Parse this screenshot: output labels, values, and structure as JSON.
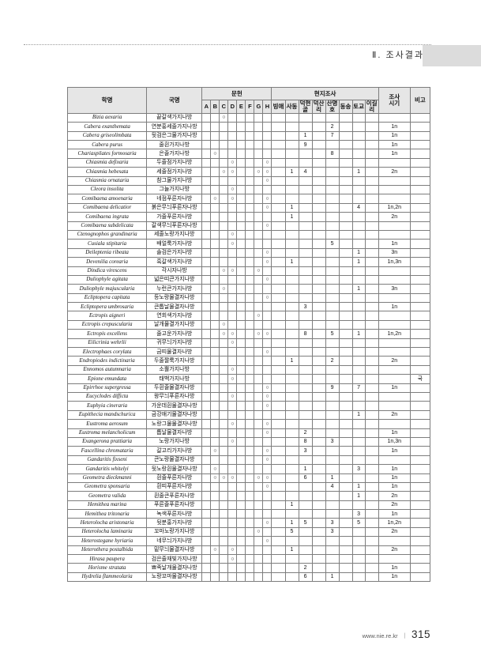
{
  "page": {
    "header_title": "Ⅱ. 조사결과",
    "footer": {
      "url": "www.nie.re.kr",
      "separator": "ㅣ",
      "page_number": "315"
    }
  },
  "table": {
    "headers": {
      "scientific_name": "학명",
      "korean_name": "국명",
      "literature": "문헌",
      "literature_cols": [
        "A",
        "B",
        "C",
        "D",
        "E",
        "F",
        "G",
        "H"
      ],
      "field_survey": "현지조사",
      "field_cols": [
        "빙애",
        "사동",
        "덕현골",
        "덕산리",
        "산명호",
        "동송",
        "토교",
        "이길리"
      ],
      "survey_period": "조사시기",
      "remarks": "비고"
    },
    "circle_mark": "○",
    "rows": [
      {
        "sci": "Bizia aexaria",
        "kor": "끝갈색가지나방",
        "lit": "C",
        "field": [
          "",
          "",
          "",
          "",
          "",
          "",
          "",
          ""
        ],
        "period": "",
        "remark": ""
      },
      {
        "sci": "Cabera exanthemata",
        "kor": "연분홍세줄가지나방",
        "lit": "",
        "field": [
          "",
          "",
          "",
          "",
          "2",
          "",
          "",
          ""
        ],
        "period": "1n",
        "remark": ""
      },
      {
        "sci": "Cabera griseolimbata",
        "kor": "뒷검은그물가지나방",
        "lit": "",
        "field": [
          "",
          "",
          "1",
          "",
          "7",
          "",
          "",
          ""
        ],
        "period": "1n",
        "remark": ""
      },
      {
        "sci": "Cabera purus",
        "kor": "줄흰가지나방",
        "lit": "",
        "field": [
          "",
          "",
          "9",
          "",
          "",
          "",
          "",
          ""
        ],
        "period": "1n",
        "remark": ""
      },
      {
        "sci": "Chariaspilates formosaria",
        "kor": "은줄가지나방",
        "lit": "B",
        "field": [
          "",
          "",
          "",
          "",
          "8",
          "",
          "",
          ""
        ],
        "period": "1n",
        "remark": ""
      },
      {
        "sci": "Chiasmia defixaria",
        "kor": "두줄점가지나방",
        "lit": "DH",
        "field": [
          "",
          "",
          "",
          "",
          "",
          "",
          "",
          ""
        ],
        "period": "",
        "remark": ""
      },
      {
        "sci": "Chiasmia hebesata",
        "kor": "세줄점가지나방",
        "lit": "CDGH",
        "field": [
          "",
          "1",
          "4",
          "",
          "",
          "",
          "1",
          ""
        ],
        "period": "2n",
        "remark": ""
      },
      {
        "sci": "Chiasmia ornataria",
        "kor": "참그물가지나방",
        "lit": "H",
        "field": [
          "",
          "",
          "",
          "",
          "",
          "",
          "",
          ""
        ],
        "period": "",
        "remark": ""
      },
      {
        "sci": "Cleora insolita",
        "kor": "그늘가지나방",
        "lit": "D",
        "field": [
          "",
          "",
          "",
          "",
          "",
          "",
          "",
          ""
        ],
        "period": "",
        "remark": ""
      },
      {
        "sci": "Comibaena amoenaria",
        "kor": "네점푸른자나방",
        "lit": "BDH",
        "field": [
          "",
          "",
          "",
          "",
          "",
          "",
          "",
          ""
        ],
        "period": "",
        "remark": ""
      },
      {
        "sci": "Comibaena delicatior",
        "kor": "붉은무늬푸른자나방",
        "lit": "H",
        "field": [
          "",
          "1",
          "",
          "",
          "",
          "",
          "4",
          ""
        ],
        "period": "1n,2n",
        "remark": ""
      },
      {
        "sci": "Comibaena ingrata",
        "kor": "가줄푸른자나방",
        "lit": "",
        "field": [
          "",
          "1",
          "",
          "",
          "",
          "",
          "",
          ""
        ],
        "period": "2n",
        "remark": ""
      },
      {
        "sci": "Comibaena subdelicata",
        "kor": "갈색무늬푸른자나방",
        "lit": "H",
        "field": [
          "",
          "",
          "",
          "",
          "",
          "",
          "",
          ""
        ],
        "period": "",
        "remark": ""
      },
      {
        "sci": "Ctenognophos grandinaria",
        "kor": "세줄노랑가지나방",
        "lit": "D",
        "field": [
          "",
          "",
          "",
          "",
          "",
          "",
          "",
          ""
        ],
        "period": "",
        "remark": ""
      },
      {
        "sci": "Cusiala stipitaria",
        "kor": "배얼룩가지나방",
        "lit": "D",
        "field": [
          "",
          "",
          "",
          "",
          "5",
          "",
          "",
          ""
        ],
        "period": "1n",
        "remark": ""
      },
      {
        "sci": "Deileptenia ribeata",
        "kor": "솔검은가지나방",
        "lit": "H",
        "field": [
          "",
          "",
          "",
          "",
          "",
          "",
          "1",
          ""
        ],
        "period": "3n",
        "remark": ""
      },
      {
        "sci": "Devenilia corearia",
        "kor": "흑갈색가지나방",
        "lit": "H",
        "field": [
          "",
          "1",
          "",
          "",
          "",
          "",
          "1",
          ""
        ],
        "period": "1n,3n",
        "remark": ""
      },
      {
        "sci": "Dindica virescens",
        "kor": "각시자나방",
        "lit": "CDG",
        "field": [
          "",
          "",
          "",
          "",
          "",
          "",
          "",
          ""
        ],
        "period": "",
        "remark": ""
      },
      {
        "sci": "Duliophyle agitata",
        "kor": "넓은띠큰가지나방",
        "lit": "H",
        "field": [
          "",
          "",
          "",
          "",
          "",
          "",
          "",
          ""
        ],
        "period": "",
        "remark": ""
      },
      {
        "sci": "Duliophyle majuscularia",
        "kor": "누런큰가지나방",
        "lit": "C",
        "field": [
          "",
          "",
          "",
          "",
          "",
          "",
          "1",
          ""
        ],
        "period": "3n",
        "remark": ""
      },
      {
        "sci": "Ecliptopera capitata",
        "kor": "등노랑물결자나방",
        "lit": "H",
        "field": [
          "",
          "",
          "",
          "",
          "",
          "",
          "",
          ""
        ],
        "period": "",
        "remark": ""
      },
      {
        "sci": "Ecliptopera umbrosaria",
        "kor": "큰톱날물결자나방",
        "lit": "",
        "field": [
          "",
          "",
          "3",
          "",
          "",
          "",
          "",
          ""
        ],
        "period": "1n",
        "remark": ""
      },
      {
        "sci": "Ectropis aigneri",
        "kor": "연회색가지나방",
        "lit": "G",
        "field": [
          "",
          "",
          "",
          "",
          "",
          "",
          "",
          ""
        ],
        "period": "",
        "remark": ""
      },
      {
        "sci": "Ectropis crepuscularia",
        "kor": "날개물결가지나방",
        "lit": "C",
        "field": [
          "",
          "",
          "",
          "",
          "",
          "",
          "",
          ""
        ],
        "period": "",
        "remark": ""
      },
      {
        "sci": "Ectropis excellens",
        "kor": "줄고운가지나방",
        "lit": "CDGH",
        "field": [
          "",
          "",
          "8",
          "",
          "5",
          "",
          "1",
          ""
        ],
        "period": "1n,2n",
        "remark": ""
      },
      {
        "sci": "Eilicrinia wehrlii",
        "kor": "귀무늬가지나방",
        "lit": "D",
        "field": [
          "",
          "",
          "",
          "",
          "",
          "",
          "",
          ""
        ],
        "period": "",
        "remark": ""
      },
      {
        "sci": "Electrophaes corylata",
        "kor": "금띠물결자나방",
        "lit": "H",
        "field": [
          "",
          "",
          "",
          "",
          "",
          "",
          "",
          ""
        ],
        "period": "",
        "remark": ""
      },
      {
        "sci": "Endropiodes indictinaria",
        "kor": "두줄짤룩가지나방",
        "lit": "",
        "field": [
          "",
          "1",
          "",
          "",
          "2",
          "",
          "",
          ""
        ],
        "period": "2n",
        "remark": ""
      },
      {
        "sci": "Ennomos autumnaria",
        "kor": "소뿔가지나방",
        "lit": "D",
        "field": [
          "",
          "",
          "",
          "",
          "",
          "",
          "",
          ""
        ],
        "period": "",
        "remark": ""
      },
      {
        "sci": "Epione emundata",
        "kor": "태백가지나방",
        "lit": "D",
        "field": [
          "",
          "",
          "",
          "",
          "",
          "",
          "",
          ""
        ],
        "period": "",
        "remark": "국"
      },
      {
        "sci": "Epirrhoe supergressa",
        "kor": "두흰줄물결자나방",
        "lit": "H",
        "field": [
          "",
          "",
          "",
          "",
          "9",
          "",
          "7",
          ""
        ],
        "period": "1n",
        "remark": ""
      },
      {
        "sci": "Eucyclodes difficta",
        "kor": "왕무늬푸른자나방",
        "lit": "DH",
        "field": [
          "",
          "",
          "",
          "",
          "",
          "",
          "",
          ""
        ],
        "period": "",
        "remark": ""
      },
      {
        "sci": "Euphyia cineraria",
        "kor": "가운데흰물결자나방",
        "lit": "H",
        "field": [
          "",
          "",
          "",
          "",
          "",
          "",
          "",
          ""
        ],
        "period": "",
        "remark": ""
      },
      {
        "sci": "Eupithecia mandschurica",
        "kor": "금강애기물결자나방",
        "lit": "",
        "field": [
          "",
          "",
          "",
          "",
          "",
          "",
          "1",
          ""
        ],
        "period": "2n",
        "remark": ""
      },
      {
        "sci": "Eustroma aerosum",
        "kor": "노랑그물물결자나방",
        "lit": "DH",
        "field": [
          "",
          "",
          "",
          "",
          "",
          "",
          "",
          ""
        ],
        "period": "",
        "remark": ""
      },
      {
        "sci": "Eustroma melancholicum",
        "kor": "톱날물결자나방",
        "lit": "H",
        "field": [
          "",
          "",
          "2",
          "",
          "",
          "",
          "",
          ""
        ],
        "period": "1n",
        "remark": ""
      },
      {
        "sci": "Exangerona prattiaria",
        "kor": "노랑가지나방",
        "lit": "D",
        "field": [
          "",
          "",
          "8",
          "",
          "3",
          "",
          "",
          ""
        ],
        "period": "1n,3n",
        "remark": ""
      },
      {
        "sci": "Fascellina chromataria",
        "kor": "갈고리가지나방",
        "lit": "BH",
        "field": [
          "",
          "",
          "3",
          "",
          "",
          "",
          "",
          ""
        ],
        "period": "1n",
        "remark": ""
      },
      {
        "sci": "Gandaritis fixseni",
        "kor": "큰노랑물결자나방",
        "lit": "H",
        "field": [
          "",
          "",
          "",
          "",
          "",
          "",
          "",
          ""
        ],
        "period": "",
        "remark": ""
      },
      {
        "sci": "Gandaritis whitelyi",
        "kor": "뒷노랑흰물결자나방",
        "lit": "B",
        "field": [
          "",
          "",
          "1",
          "",
          "",
          "",
          "3",
          ""
        ],
        "period": "1n",
        "remark": ""
      },
      {
        "sci": "Geometra dieckmanni",
        "kor": "흰줄푸른자나방",
        "lit": "BCDGH",
        "field": [
          "",
          "",
          "6",
          "",
          "1",
          "",
          "",
          ""
        ],
        "period": "1n",
        "remark": ""
      },
      {
        "sci": "Geometra sponsaria",
        "kor": "흰띠푸른자나방",
        "lit": "H",
        "field": [
          "",
          "",
          "",
          "",
          "4",
          "",
          "1",
          ""
        ],
        "period": "1n",
        "remark": ""
      },
      {
        "sci": "Geometra valida",
        "kor": "흰줄큰푸른자나방",
        "lit": "",
        "field": [
          "",
          "",
          "",
          "",
          "",
          "",
          "1",
          ""
        ],
        "period": "2n",
        "remark": ""
      },
      {
        "sci": "Hemithea marina",
        "kor": "푸른줄푸른자나방",
        "lit": "",
        "field": [
          "",
          "1",
          "",
          "",
          "",
          "",
          "",
          ""
        ],
        "period": "2n",
        "remark": ""
      },
      {
        "sci": "Hemithea tritonaria",
        "kor": "녹색푸른자나방",
        "lit": "",
        "field": [
          "",
          "",
          "",
          "",
          "",
          "",
          "3",
          ""
        ],
        "period": "1n",
        "remark": ""
      },
      {
        "sci": "Heterolocha aristonaria",
        "kor": "뒷분홍가지나방",
        "lit": "H",
        "field": [
          "",
          "1",
          "5",
          "",
          "3",
          "",
          "5",
          ""
        ],
        "period": "1n,2n",
        "remark": ""
      },
      {
        "sci": "Heterolocha laminaria",
        "kor": "꼬마노랑가지나방",
        "lit": "G",
        "field": [
          "",
          "5",
          "",
          "",
          "3",
          "",
          "",
          ""
        ],
        "period": "2n",
        "remark": ""
      },
      {
        "sci": "Heterostegane hyriaria",
        "kor": "네무늬가지나방",
        "lit": "H",
        "field": [
          "",
          "",
          "",
          "",
          "",
          "",
          "",
          ""
        ],
        "period": "",
        "remark": ""
      },
      {
        "sci": "Heterothera postalbida",
        "kor": "밑무늬물결자나방",
        "lit": "BD",
        "field": [
          "",
          "1",
          "",
          "",
          "",
          "",
          "",
          ""
        ],
        "period": "2n",
        "remark": ""
      },
      {
        "sci": "Hirasa paupera",
        "kor": "검은줄재빛가지나방",
        "lit": "D",
        "field": [
          "",
          "",
          "",
          "",
          "",
          "",
          "",
          ""
        ],
        "period": "",
        "remark": ""
      },
      {
        "sci": "Horisme stratata",
        "kor": "뾰족날개물결자나방",
        "lit": "",
        "field": [
          "",
          "",
          "2",
          "",
          "",
          "",
          "",
          ""
        ],
        "period": "1n",
        "remark": ""
      },
      {
        "sci": "Hydrelia flammeolaria",
        "kor": "노랑꼬마물결자나방",
        "lit": "",
        "field": [
          "",
          "",
          "6",
          "",
          "1",
          "",
          "",
          ""
        ],
        "period": "1n",
        "remark": ""
      }
    ]
  }
}
